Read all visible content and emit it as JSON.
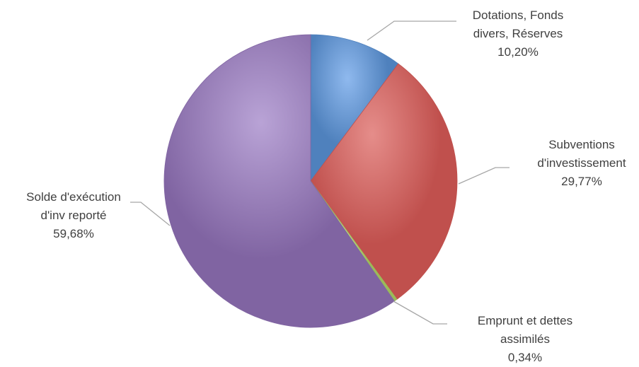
{
  "chart_data": {
    "type": "pie",
    "title": "",
    "start_angle_deg": 0,
    "direction": "clockwise",
    "legend": "none",
    "slices": [
      {
        "name": "Dotations, Fonds divers, Réserves",
        "label_lines": [
          "Dotations, Fonds",
          "divers, Réserves"
        ],
        "value": 10.2,
        "value_label": "10,20%",
        "color": "#4f81bd",
        "highlight": "#8fb9ee"
      },
      {
        "name": "Subventions d'investissement",
        "label_lines": [
          "Subventions",
          "d'investissement"
        ],
        "value": 29.77,
        "value_label": "29,77%",
        "color": "#c0504d",
        "highlight": "#e58d8a"
      },
      {
        "name": "Emprunt et dettes assimilés",
        "label_lines": [
          "Emprunt et dettes",
          "assimilés"
        ],
        "value": 0.34,
        "value_label": "0,34%",
        "color": "#9bbb59",
        "highlight": "#c5dd8f"
      },
      {
        "name": "Solde d'exécution d'inv reporté",
        "label_lines": [
          "Solde d'exécution",
          "d'inv reporté"
        ],
        "value": 59.68,
        "value_label": "59,68%",
        "color": "#8064a2",
        "highlight": "#b9a3d6"
      }
    ]
  }
}
